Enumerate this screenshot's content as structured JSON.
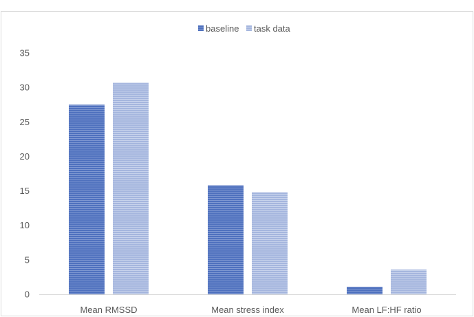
{
  "chart_data": {
    "type": "bar",
    "categories": [
      "Mean RMSSD",
      "Mean stress index",
      "Mean LF:HF ratio"
    ],
    "series": [
      {
        "name": "baseline",
        "values": [
          27.5,
          15.8,
          1.1
        ],
        "color": "#4F71BE"
      },
      {
        "name": "task data",
        "values": [
          30.7,
          14.8,
          3.6
        ],
        "color": "#A5B6DE"
      }
    ],
    "yticks": [
      "0",
      "5",
      "10",
      "15",
      "20",
      "25",
      "30",
      "35"
    ],
    "ylim": [
      0,
      35
    ],
    "grid": false,
    "legend": "top-center",
    "bar_fill": "horizontal-line pattern"
  }
}
